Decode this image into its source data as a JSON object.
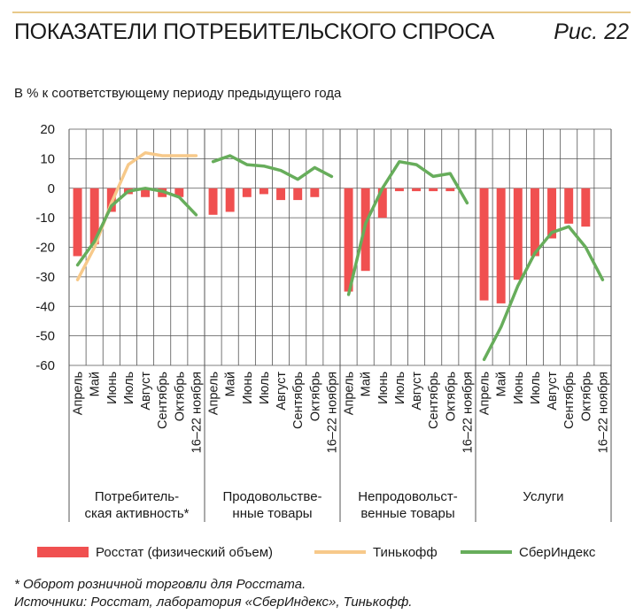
{
  "header": {
    "title": "ПОКАЗАТЕЛИ ПОТРЕБИТЕЛЬСКОГО СПРОСА",
    "figure_label": "Рис. 22"
  },
  "subtitle": "В % к соответствующему периоду предыдущего года",
  "legend": {
    "rosstat": "Росстат (физический объем)",
    "tinkoff": "Тинькофф",
    "sber": "СберИндекс"
  },
  "notes": {
    "footnote": "* Оборот розничной торговли для Росстата.",
    "sources": "Источники: Росстат, лаборатория «СберИндекс», Тинькофф."
  },
  "colors": {
    "rosstat": "#f05050",
    "tinkoff": "#f7c98a",
    "sber": "#67ad5b",
    "grid": "#555555"
  },
  "chart_data": {
    "type": "bar",
    "ylim": [
      -60,
      20
    ],
    "yticks": [
      20,
      10,
      0,
      -10,
      -20,
      -30,
      -40,
      -50,
      -60
    ],
    "categories": [
      "Апрель",
      "Май",
      "Июнь",
      "Июль",
      "Август",
      "Сентябрь",
      "Октябрь",
      "16–22 ноября"
    ],
    "groups": [
      {
        "label": [
          "Потребитель-",
          "ская активность*"
        ],
        "rosstat": [
          -23,
          -19,
          -8,
          -2,
          -3,
          -3,
          -3,
          null
        ],
        "tinkoff": [
          -31,
          -20,
          -5,
          8,
          12,
          11,
          11,
          11
        ],
        "sber": [
          -26,
          -18,
          -6,
          -1,
          0,
          -1,
          -3,
          -9
        ]
      },
      {
        "label": [
          "Продовольстве-",
          "нные товары"
        ],
        "rosstat": [
          -9,
          -8,
          -3,
          -2,
          -4,
          -4,
          -3,
          null
        ],
        "sber": [
          9,
          11,
          8,
          7.5,
          6,
          3,
          7,
          4
        ]
      },
      {
        "label": [
          "Непродовольст-",
          "венные товары"
        ],
        "rosstat": [
          -35,
          -28,
          -10,
          -1,
          -1,
          -1,
          -1,
          null
        ],
        "sber": [
          -36,
          -12,
          0,
          9,
          8,
          4,
          5,
          -5
        ]
      },
      {
        "label": [
          "Услуги"
        ],
        "rosstat": [
          -38,
          -39,
          -31,
          -23,
          -17,
          -12,
          -13,
          null
        ],
        "sber": [
          -58,
          -47,
          -33,
          -22,
          -15,
          -13,
          -20,
          -31
        ]
      }
    ]
  }
}
